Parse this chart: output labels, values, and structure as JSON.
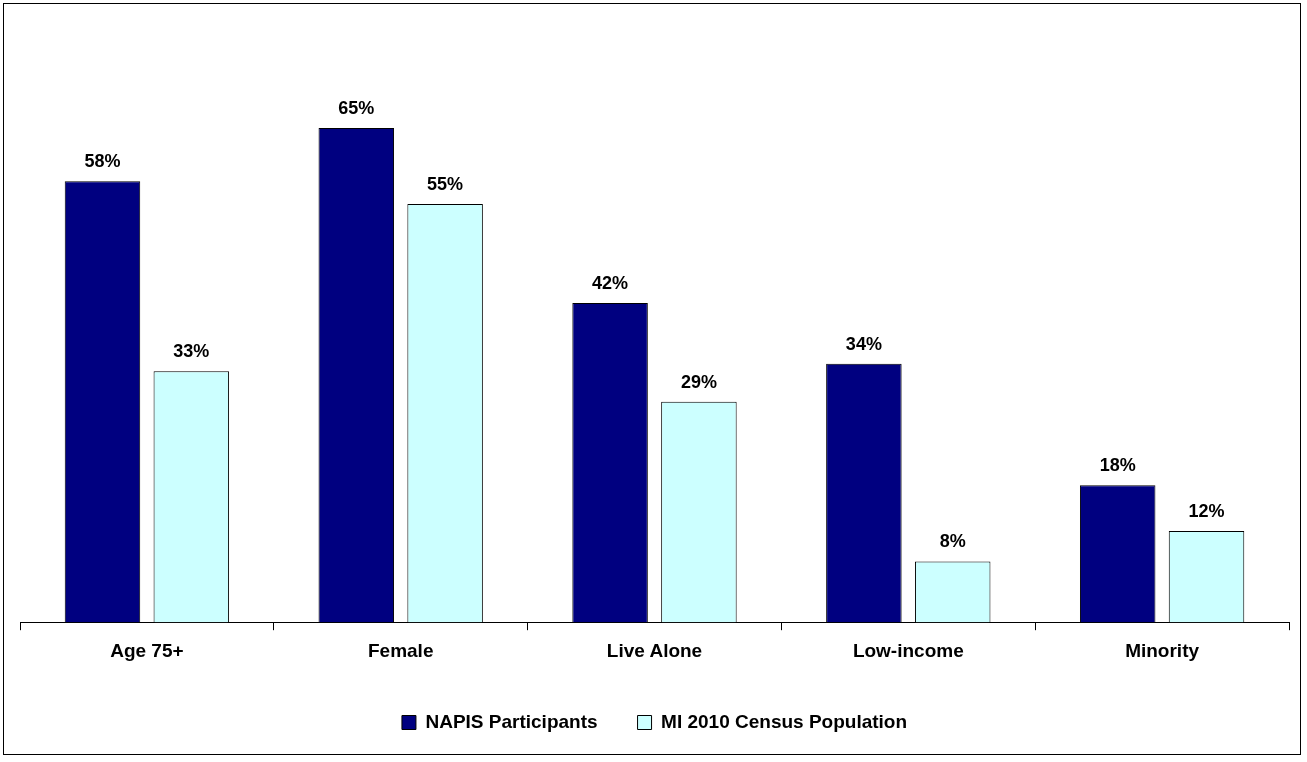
{
  "chart_data": {
    "type": "bar",
    "categories": [
      "Age 75+",
      "Female",
      "Live Alone",
      "Low-income",
      "Minority"
    ],
    "series": [
      {
        "name": "NAPIS Participants",
        "color": "#000080",
        "values": [
          58,
          65,
          42,
          34,
          18
        ],
        "value_labels": [
          "58%",
          "65%",
          "42%",
          "34%",
          "18%"
        ]
      },
      {
        "name": "MI 2010 Census Population",
        "color": "#ccffff",
        "values": [
          33,
          55,
          29,
          8,
          12
        ],
        "value_labels": [
          "33%",
          "55%",
          "29%",
          "8%",
          "12%"
        ]
      }
    ],
    "tick_labels": "x",
    "grid": false,
    "legend": "bottom"
  }
}
